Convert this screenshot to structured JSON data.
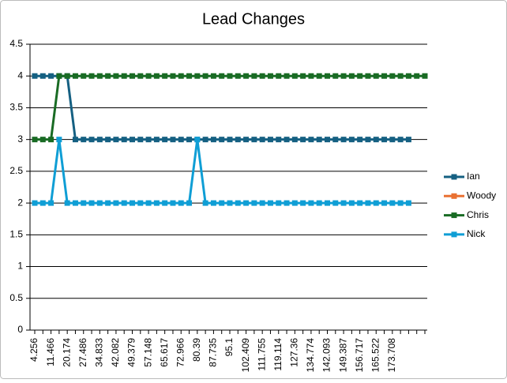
{
  "chart_data": {
    "type": "line",
    "title": "Lead Changes",
    "categories": [
      "4.256",
      null,
      "11.466",
      null,
      "20.174",
      null,
      "27.486",
      null,
      "34.833",
      null,
      "42.082",
      null,
      "49.379",
      null,
      "57.148",
      null,
      "65.617",
      null,
      "72.966",
      null,
      "80.39",
      null,
      "87.735",
      null,
      "95.1",
      null,
      "102.409",
      null,
      "111.755",
      null,
      "119.114",
      null,
      "127.36",
      null,
      "134.774",
      null,
      "142.093",
      null,
      "149.387",
      null,
      "156.717",
      null,
      "165.522",
      null,
      "173.708",
      null,
      null,
      null,
      null
    ],
    "series": [
      {
        "name": "Ian",
        "color": "#156082",
        "values": [
          4,
          4,
          4,
          4,
          4,
          3,
          3,
          3,
          3,
          3,
          3,
          3,
          3,
          3,
          3,
          3,
          3,
          3,
          3,
          3,
          3,
          3,
          3,
          3,
          3,
          3,
          3,
          3,
          3,
          3,
          3,
          3,
          3,
          3,
          3,
          3,
          3,
          3,
          3,
          3,
          3,
          3,
          3,
          3,
          3,
          3,
          3,
          null,
          null
        ]
      },
      {
        "name": "Woody",
        "color": "#e97132",
        "values": [
          null,
          null,
          null,
          null,
          null,
          null,
          null,
          null,
          null,
          null,
          null,
          null,
          null,
          null,
          null,
          null,
          null,
          null,
          null,
          null,
          null,
          null,
          null,
          null,
          null,
          null,
          null,
          null,
          null,
          null,
          null,
          null,
          null,
          null,
          null,
          null,
          null,
          null,
          null,
          null,
          null,
          null,
          null,
          null,
          null,
          null,
          null,
          null,
          null
        ]
      },
      {
        "name": "Chris",
        "color": "#196b24",
        "values": [
          3,
          3,
          3,
          4,
          4,
          4,
          4,
          4,
          4,
          4,
          4,
          4,
          4,
          4,
          4,
          4,
          4,
          4,
          4,
          4,
          4,
          4,
          4,
          4,
          4,
          4,
          4,
          4,
          4,
          4,
          4,
          4,
          4,
          4,
          4,
          4,
          4,
          4,
          4,
          4,
          4,
          4,
          4,
          4,
          4,
          4,
          4,
          4,
          4
        ]
      },
      {
        "name": "Nick",
        "color": "#0f9ed5",
        "values": [
          2,
          2,
          2,
          3,
          2,
          2,
          2,
          2,
          2,
          2,
          2,
          2,
          2,
          2,
          2,
          2,
          2,
          2,
          2,
          2,
          3,
          2,
          2,
          2,
          2,
          2,
          2,
          2,
          2,
          2,
          2,
          2,
          2,
          2,
          2,
          2,
          2,
          2,
          2,
          2,
          2,
          2,
          2,
          2,
          2,
          2,
          2,
          null,
          null
        ]
      }
    ],
    "ylim": [
      0,
      4.5
    ],
    "yticks": [
      0,
      0.5,
      1,
      1.5,
      2,
      2.5,
      3,
      3.5,
      4,
      4.5
    ],
    "grid": true,
    "legend": "right"
  }
}
